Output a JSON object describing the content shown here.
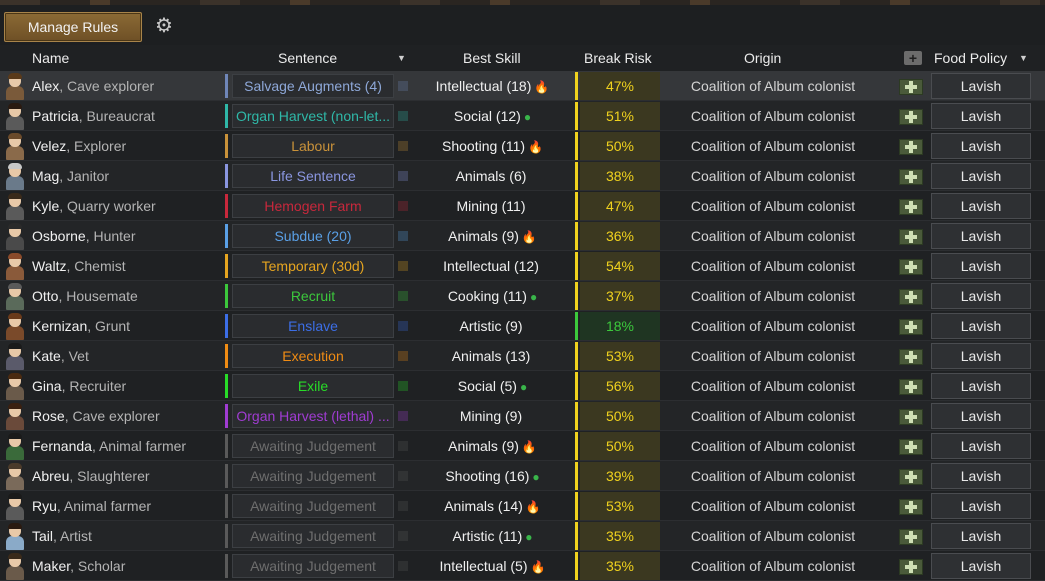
{
  "toolbar": {
    "manage_rules_label": "Manage Rules",
    "settings_icon": "gear-icon"
  },
  "columns": {
    "name": "Name",
    "sentence": "Sentence",
    "best_skill": "Best Skill",
    "break_risk": "Break Risk",
    "origin": "Origin",
    "food_policy": "Food Policy",
    "sort_arrow": "▼",
    "add_column": "+"
  },
  "colors": {
    "risk_yellow": "#f0d21e",
    "risk_green": "#3cc83c",
    "gold": "#8b6a35"
  },
  "rows": [
    {
      "name": "Alex",
      "role": ", Cave explorer",
      "sentence": "Salvage Augments (4)",
      "sentence_color": "#8ea8d8",
      "bar_color": "#6f86b8",
      "skill": "Intellectual (18)",
      "passion": "🔥",
      "passion_type": "major",
      "risk": "47%",
      "risk_color": "#f0d21e",
      "origin": "Coalition of Album colonist",
      "food": "Lavish"
    },
    {
      "name": "Patricia",
      "role": ", Bureaucrat",
      "sentence": "Organ Harvest (non-let...",
      "sentence_color": "#2fb8a8",
      "bar_color": "#2fb8a8",
      "skill": "Social (12)",
      "passion": "●",
      "passion_type": "leaf",
      "risk": "51%",
      "risk_color": "#f0d21e",
      "origin": "Coalition of Album colonist",
      "food": "Lavish"
    },
    {
      "name": "Velez",
      "role": ", Explorer",
      "sentence": "Labour",
      "sentence_color": "#c9923a",
      "bar_color": "#c9923a",
      "skill": "Shooting (11)",
      "passion": "🔥",
      "passion_type": "flame",
      "risk": "50%",
      "risk_color": "#f0d21e",
      "origin": "Coalition of Album colonist",
      "food": "Lavish"
    },
    {
      "name": "Mag",
      "role": ", Janitor",
      "sentence": "Life Sentence",
      "sentence_color": "#8a96e0",
      "bar_color": "#8a96e0",
      "skill": "Animals (6)",
      "passion": "",
      "passion_type": "",
      "risk": "38%",
      "risk_color": "#f0d21e",
      "origin": "Coalition of Album colonist",
      "food": "Lavish"
    },
    {
      "name": "Kyle",
      "role": ", Quarry worker",
      "sentence": "Hemogen Farm",
      "sentence_color": "#c8283c",
      "bar_color": "#c8283c",
      "skill": "Mining (11)",
      "passion": "",
      "passion_type": "",
      "risk": "47%",
      "risk_color": "#f0d21e",
      "origin": "Coalition of Album colonist",
      "food": "Lavish"
    },
    {
      "name": "Osborne",
      "role": ", Hunter",
      "sentence": "Subdue (20)",
      "sentence_color": "#5aa0e6",
      "bar_color": "#5aa0e6",
      "skill": "Animals (9)",
      "passion": "🔥",
      "passion_type": "major",
      "risk": "36%",
      "risk_color": "#f0d21e",
      "origin": "Coalition of Album colonist",
      "food": "Lavish"
    },
    {
      "name": "Waltz",
      "role": ", Chemist",
      "sentence": "Temporary (30d)",
      "sentence_color": "#e6a520",
      "bar_color": "#e6a520",
      "skill": "Intellectual (12)",
      "passion": "",
      "passion_type": "",
      "risk": "54%",
      "risk_color": "#f0d21e",
      "origin": "Coalition of Album colonist",
      "food": "Lavish"
    },
    {
      "name": "Otto",
      "role": ", Housemate",
      "sentence": "Recruit",
      "sentence_color": "#3cc83c",
      "bar_color": "#3cc83c",
      "skill": "Cooking (11)",
      "passion": "●",
      "passion_type": "leaf",
      "risk": "37%",
      "risk_color": "#f0d21e",
      "origin": "Coalition of Album colonist",
      "food": "Lavish"
    },
    {
      "name": "Kernizan",
      "role": ", Grunt",
      "sentence": "Enslave",
      "sentence_color": "#3c6ee6",
      "bar_color": "#3c6ee6",
      "skill": "Artistic (9)",
      "passion": "",
      "passion_type": "",
      "risk": "18%",
      "risk_color": "#3cc83c",
      "origin": "Coalition of Album colonist",
      "food": "Lavish"
    },
    {
      "name": "Kate",
      "role": ", Vet",
      "sentence": "Execution",
      "sentence_color": "#f08c14",
      "bar_color": "#f08c14",
      "skill": "Animals (13)",
      "passion": "",
      "passion_type": "",
      "risk": "53%",
      "risk_color": "#f0d21e",
      "origin": "Coalition of Album colonist",
      "food": "Lavish"
    },
    {
      "name": "Gina",
      "role": ", Recruiter",
      "sentence": "Exile",
      "sentence_color": "#28dc28",
      "bar_color": "#28dc28",
      "skill": "Social (5)",
      "passion": "●",
      "passion_type": "leaf",
      "risk": "56%",
      "risk_color": "#f0d21e",
      "origin": "Coalition of Album colonist",
      "food": "Lavish"
    },
    {
      "name": "Rose",
      "role": ", Cave explorer",
      "sentence": "Organ Harvest (lethal) ...",
      "sentence_color": "#a03cd2",
      "bar_color": "#a03cd2",
      "skill": "Mining (9)",
      "passion": "",
      "passion_type": "",
      "risk": "50%",
      "risk_color": "#f0d21e",
      "origin": "Coalition of Album colonist",
      "food": "Lavish"
    },
    {
      "name": "Fernanda",
      "role": ", Animal farmer",
      "sentence": "Awaiting Judgement",
      "sentence_color": "#6e6e6e",
      "bar_color": "#5a5a5a",
      "skill": "Animals (9)",
      "passion": "🔥",
      "passion_type": "flame",
      "risk": "50%",
      "risk_color": "#f0d21e",
      "origin": "Coalition of Album colonist",
      "food": "Lavish"
    },
    {
      "name": "Abreu",
      "role": ", Slaughterer",
      "sentence": "Awaiting Judgement",
      "sentence_color": "#6e6e6e",
      "bar_color": "#5a5a5a",
      "skill": "Shooting (16)",
      "passion": "●",
      "passion_type": "leaf",
      "risk": "39%",
      "risk_color": "#f0d21e",
      "origin": "Coalition of Album colonist",
      "food": "Lavish"
    },
    {
      "name": "Ryu",
      "role": ", Animal farmer",
      "sentence": "Awaiting Judgement",
      "sentence_color": "#6e6e6e",
      "bar_color": "#5a5a5a",
      "skill": "Animals (14)",
      "passion": "🔥",
      "passion_type": "flame",
      "risk": "53%",
      "risk_color": "#f0d21e",
      "origin": "Coalition of Album colonist",
      "food": "Lavish"
    },
    {
      "name": "Tail",
      "role": ", Artist",
      "sentence": "Awaiting Judgement",
      "sentence_color": "#6e6e6e",
      "bar_color": "#5a5a5a",
      "skill": "Artistic (11)",
      "passion": "●",
      "passion_type": "leaf",
      "risk": "35%",
      "risk_color": "#f0d21e",
      "origin": "Coalition of Album colonist",
      "food": "Lavish"
    },
    {
      "name": "Maker",
      "role": ", Scholar",
      "sentence": "Awaiting Judgement",
      "sentence_color": "#6e6e6e",
      "bar_color": "#5a5a5a",
      "skill": "Intellectual (5)",
      "passion": "🔥",
      "passion_type": "flame",
      "risk": "35%",
      "risk_color": "#f0d21e",
      "origin": "Coalition of Album colonist",
      "food": "Lavish"
    }
  ]
}
